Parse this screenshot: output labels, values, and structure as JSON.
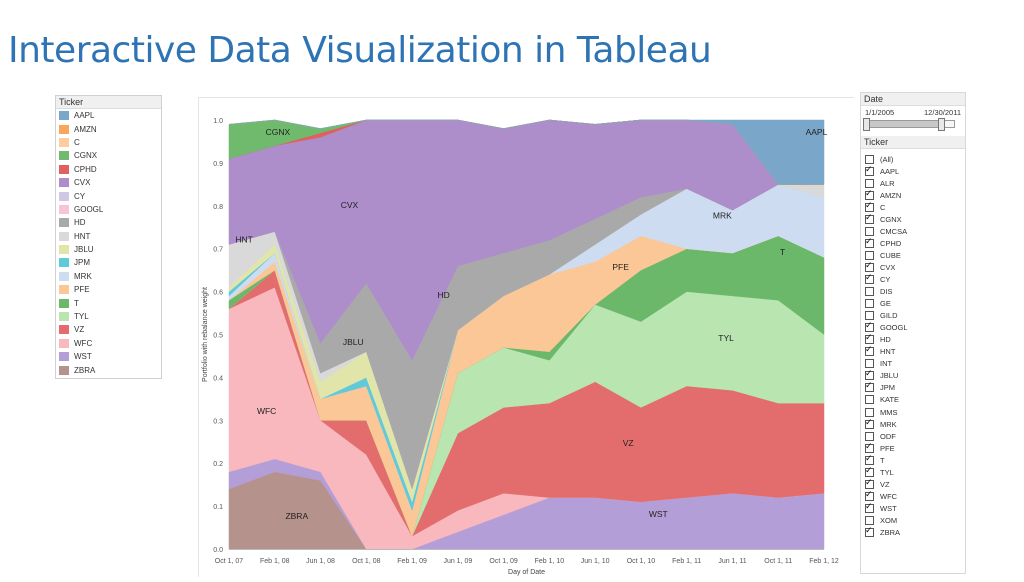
{
  "slide": {
    "title": "Interactive Data Visualization in Tableau"
  },
  "legend": {
    "title": "Ticker",
    "items": [
      {
        "label": "AAPL",
        "color": "#7aa6c9"
      },
      {
        "label": "AMZN",
        "color": "#f9a65a"
      },
      {
        "label": "C",
        "color": "#fdcd9f"
      },
      {
        "label": "CGNX",
        "color": "#6fba6c"
      },
      {
        "label": "CPHD",
        "color": "#e05f5f"
      },
      {
        "label": "CVX",
        "color": "#ad8ecb"
      },
      {
        "label": "CY",
        "color": "#d2c6e4"
      },
      {
        "label": "GOOGL",
        "color": "#f7c5d5"
      },
      {
        "label": "HD",
        "color": "#a9a9a9"
      },
      {
        "label": "HNT",
        "color": "#d9d9d9"
      },
      {
        "label": "JBLU",
        "color": "#e1e5aa"
      },
      {
        "label": "JPM",
        "color": "#61c9d7"
      },
      {
        "label": "MRK",
        "color": "#cddcf0"
      },
      {
        "label": "PFE",
        "color": "#fcc797"
      },
      {
        "label": "T",
        "color": "#6bb86b"
      },
      {
        "label": "TYL",
        "color": "#b8e5b0"
      },
      {
        "label": "VZ",
        "color": "#e36d6d"
      },
      {
        "label": "WFC",
        "color": "#f9b8be"
      },
      {
        "label": "WST",
        "color": "#b49ed7"
      },
      {
        "label": "ZBRA",
        "color": "#b6928d"
      }
    ]
  },
  "filters": {
    "date": {
      "title": "Date",
      "start": "1/1/2005",
      "end": "12/30/2011",
      "range": [
        0,
        0.85
      ]
    },
    "ticker": {
      "title": "Ticker",
      "options": [
        {
          "label": "(All)",
          "checked": false
        },
        {
          "label": "AAPL",
          "checked": true
        },
        {
          "label": "ALR",
          "checked": false
        },
        {
          "label": "AMZN",
          "checked": true
        },
        {
          "label": "C",
          "checked": true
        },
        {
          "label": "CGNX",
          "checked": true
        },
        {
          "label": "CMCSA",
          "checked": false
        },
        {
          "label": "CPHD",
          "checked": true
        },
        {
          "label": "CUBE",
          "checked": false
        },
        {
          "label": "CVX",
          "checked": true
        },
        {
          "label": "CY",
          "checked": true
        },
        {
          "label": "DIS",
          "checked": false
        },
        {
          "label": "GE",
          "checked": false
        },
        {
          "label": "GILD",
          "checked": false
        },
        {
          "label": "GOOGL",
          "checked": true
        },
        {
          "label": "HD",
          "checked": true
        },
        {
          "label": "HNT",
          "checked": true
        },
        {
          "label": "INT",
          "checked": false
        },
        {
          "label": "JBLU",
          "checked": true
        },
        {
          "label": "JPM",
          "checked": true
        },
        {
          "label": "KATE",
          "checked": false
        },
        {
          "label": "MMS",
          "checked": false
        },
        {
          "label": "MRK",
          "checked": true
        },
        {
          "label": "ODF",
          "checked": false
        },
        {
          "label": "PFE",
          "checked": true
        },
        {
          "label": "T",
          "checked": true
        },
        {
          "label": "TYL",
          "checked": true
        },
        {
          "label": "VZ",
          "checked": true
        },
        {
          "label": "WFC",
          "checked": true
        },
        {
          "label": "WST",
          "checked": true
        },
        {
          "label": "XOM",
          "checked": false
        },
        {
          "label": "ZBRA",
          "checked": true
        }
      ]
    }
  },
  "chart_data": {
    "type": "area",
    "stacked": true,
    "xlabel": "Day of Date",
    "ylabel": "Portfolio with rebalance weight",
    "ylim": [
      0,
      1
    ],
    "yticks": [
      "0.0",
      "0.1",
      "0.2",
      "0.3",
      "0.4",
      "0.5",
      "0.6",
      "0.7",
      "0.8",
      "0.9",
      "1.0"
    ],
    "xticks": [
      "Oct 1, 07",
      "Feb 1, 08",
      "Jun 1, 08",
      "Oct 1, 08",
      "Feb 1, 09",
      "Jun 1, 09",
      "Oct 1, 09",
      "Feb 1, 10",
      "Jun 1, 10",
      "Oct 1, 10",
      "Feb 1, 11",
      "Jun 1, 11",
      "Oct 1, 11",
      "Feb 1, 12"
    ],
    "x": [
      "Oct 1, 07",
      "Feb 1, 08",
      "Jun 1, 08",
      "Oct 1, 08",
      "Feb 1, 09",
      "Jun 1, 09",
      "Oct 1, 09",
      "Feb 1, 10",
      "Jun 1, 10",
      "Oct 1, 10",
      "Feb 1, 11",
      "Jun 1, 11",
      "Oct 1, 11",
      "Feb 1, 12"
    ],
    "grid": false,
    "series": [
      {
        "name": "ZBRA",
        "color": "#b6928d",
        "values": [
          0.14,
          0.18,
          0.16,
          0.0,
          0.0,
          0.0,
          0.0,
          0.0,
          0.0,
          0.0,
          0.0,
          0.0,
          0.0,
          0.0
        ]
      },
      {
        "name": "WST",
        "color": "#b49ed7",
        "values": [
          0.04,
          0.03,
          0.02,
          0.0,
          0.0,
          0.04,
          0.08,
          0.12,
          0.12,
          0.11,
          0.12,
          0.13,
          0.12,
          0.13
        ]
      },
      {
        "name": "WFC",
        "color": "#f9b8be",
        "values": [
          0.38,
          0.4,
          0.12,
          0.22,
          0.03,
          0.05,
          0.05,
          0.0,
          0.0,
          0.0,
          0.0,
          0.0,
          0.0,
          0.0
        ]
      },
      {
        "name": "VZ",
        "color": "#e36d6d",
        "values": [
          0.0,
          0.04,
          0.0,
          0.08,
          0.0,
          0.18,
          0.2,
          0.22,
          0.27,
          0.22,
          0.26,
          0.24,
          0.22,
          0.21
        ]
      },
      {
        "name": "TYL",
        "color": "#b8e5b0",
        "values": [
          0.0,
          0.0,
          0.0,
          0.0,
          0.0,
          0.14,
          0.14,
          0.1,
          0.18,
          0.2,
          0.22,
          0.22,
          0.24,
          0.16
        ]
      },
      {
        "name": "T",
        "color": "#6bb86b",
        "values": [
          0.02,
          0.0,
          0.0,
          0.0,
          0.0,
          0.0,
          0.0,
          0.02,
          0.0,
          0.12,
          0.1,
          0.1,
          0.15,
          0.18
        ]
      },
      {
        "name": "PFE",
        "color": "#fcc797",
        "values": [
          0.0,
          0.02,
          0.05,
          0.08,
          0.06,
          0.1,
          0.12,
          0.18,
          0.1,
          0.08,
          0.0,
          0.0,
          0.0,
          0.0
        ]
      },
      {
        "name": "MRK",
        "color": "#cddcf0",
        "values": [
          0.01,
          0.02,
          0.0,
          0.0,
          0.0,
          0.0,
          0.0,
          0.0,
          0.04,
          0.05,
          0.14,
          0.1,
          0.12,
          0.14
        ]
      },
      {
        "name": "JPM",
        "color": "#61c9d7",
        "values": [
          0.01,
          0.0,
          0.0,
          0.02,
          0.02,
          0.0,
          0.0,
          0.0,
          0.0,
          0.0,
          0.0,
          0.0,
          0.0,
          0.0
        ]
      },
      {
        "name": "JBLU",
        "color": "#e1e5aa",
        "values": [
          0.01,
          0.02,
          0.04,
          0.06,
          0.03,
          0.0,
          0.0,
          0.0,
          0.0,
          0.0,
          0.0,
          0.0,
          0.0,
          0.0
        ]
      },
      {
        "name": "HNT",
        "color": "#d9d9d9",
        "values": [
          0.1,
          0.03,
          0.02,
          0.0,
          0.0,
          0.0,
          0.0,
          0.0,
          0.0,
          0.0,
          0.0,
          0.0,
          0.0,
          0.03
        ]
      },
      {
        "name": "HD",
        "color": "#a9a9a9",
        "values": [
          0.0,
          0.0,
          0.07,
          0.16,
          0.3,
          0.15,
          0.1,
          0.08,
          0.06,
          0.04,
          0.0,
          0.0,
          0.0,
          0.0
        ]
      },
      {
        "name": "CVX",
        "color": "#ad8ecb",
        "values": [
          0.2,
          0.2,
          0.48,
          0.38,
          0.56,
          0.34,
          0.29,
          0.28,
          0.22,
          0.18,
          0.16,
          0.2,
          0.0,
          0.0
        ]
      },
      {
        "name": "CPHD",
        "color": "#e05f5f",
        "values": [
          0.0,
          0.0,
          0.01,
          0.0,
          0.0,
          0.0,
          0.0,
          0.0,
          0.0,
          0.0,
          0.0,
          0.0,
          0.0,
          0.0
        ]
      },
      {
        "name": "CGNX",
        "color": "#6fba6c",
        "values": [
          0.08,
          0.06,
          0.01,
          0.0,
          0.0,
          0.0,
          0.0,
          0.0,
          0.0,
          0.0,
          0.0,
          0.0,
          0.0,
          0.0
        ]
      },
      {
        "name": "AMZN",
        "color": "#f9a65a",
        "values": [
          0.0,
          0.0,
          0.0,
          0.0,
          0.0,
          0.0,
          0.0,
          0.0,
          0.0,
          0.0,
          0.0,
          0.0,
          0.0,
          0.0
        ]
      },
      {
        "name": "AAPL",
        "color": "#7aa6c9",
        "values": [
          0.0,
          0.0,
          0.0,
          0.0,
          0.0,
          0.0,
          0.0,
          0.0,
          0.0,
          0.0,
          0.0,
          0.01,
          0.15,
          0.15
        ]
      }
    ],
    "area_labels": [
      {
        "text": "CGNX",
        "x": 1.3,
        "y": 0.965
      },
      {
        "text": "CVX",
        "x": 3.2,
        "y": 0.795
      },
      {
        "text": "HNT",
        "x": 0.4,
        "y": 0.715
      },
      {
        "text": "HD",
        "x": 5.7,
        "y": 0.585
      },
      {
        "text": "JBLU",
        "x": 3.3,
        "y": 0.475
      },
      {
        "text": "WFC",
        "x": 1.0,
        "y": 0.315
      },
      {
        "text": "ZBRA",
        "x": 1.8,
        "y": 0.07
      },
      {
        "text": "PFE",
        "x": 10.4,
        "y": 0.65
      },
      {
        "text": "MRK",
        "x": 13.1,
        "y": 0.77
      },
      {
        "text": "T",
        "x": 14.7,
        "y": 0.685
      },
      {
        "text": "TYL",
        "x": 13.2,
        "y": 0.485
      },
      {
        "text": "VZ",
        "x": 10.6,
        "y": 0.24
      },
      {
        "text": "WST",
        "x": 11.4,
        "y": 0.075
      },
      {
        "text": "AAPL",
        "x": 15.6,
        "y": 0.965
      }
    ]
  }
}
